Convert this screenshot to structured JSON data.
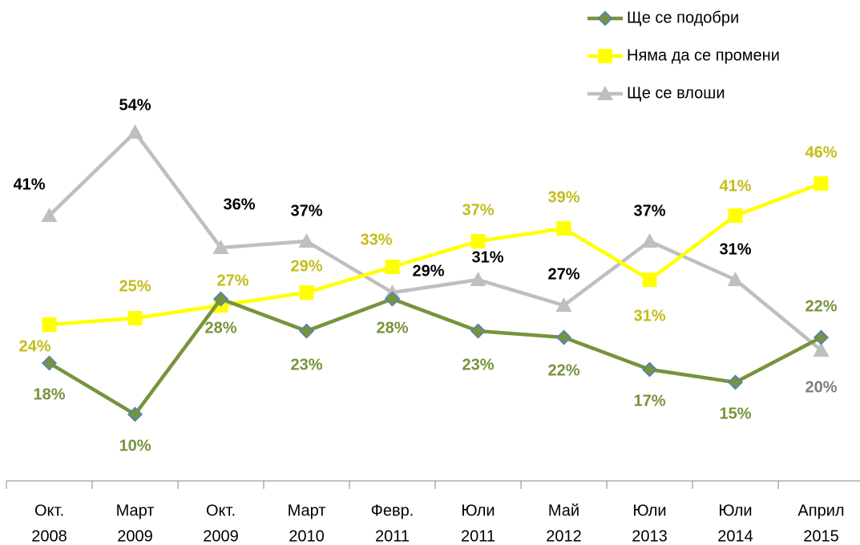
{
  "chart_data": {
    "type": "line",
    "categories": [
      [
        "Окт.",
        "2008"
      ],
      [
        "Март",
        "2009"
      ],
      [
        "Окт.",
        "2009"
      ],
      [
        "Март",
        "2010"
      ],
      [
        "Февр.",
        "2011"
      ],
      [
        "Юли",
        "2011"
      ],
      [
        "Май",
        "2012"
      ],
      [
        "Юли",
        "2013"
      ],
      [
        "Юли",
        "2014"
      ],
      [
        "Април",
        "2015"
      ]
    ],
    "ylim": [
      0,
      70
    ],
    "series": [
      {
        "name": "Ще се подобри",
        "color": "#77933c",
        "label_color": "#77933c",
        "values": [
          18,
          10,
          28,
          23,
          28,
          23,
          22,
          17,
          15,
          22
        ],
        "value_labels": [
          "18%",
          "10%",
          "28%",
          "23%",
          "28%",
          "23%",
          "22%",
          "17%",
          "15%",
          "22%"
        ]
      },
      {
        "name": "Няма да се промени",
        "color": "#ffff00",
        "label_color": "#c4bd1a",
        "values": [
          24,
          25,
          27,
          29,
          33,
          37,
          39,
          31,
          41,
          46
        ],
        "value_labels": [
          "24%",
          "25%",
          "27%",
          "29%",
          "33%",
          "37%",
          "39%",
          "31%",
          "41%",
          "46%"
        ]
      },
      {
        "name": "Ще се влоши",
        "color": "#bfbfbf",
        "label_colors": [
          "#000000",
          "#000000",
          "#000000",
          "#000000",
          "#000000",
          "#000000",
          "#000000",
          "#000000",
          "#000000",
          "#7f7f7f"
        ],
        "values": [
          41,
          54,
          36,
          37,
          29,
          31,
          27,
          37,
          31,
          20
        ],
        "value_labels": [
          "41%",
          "54%",
          "36%",
          "37%",
          "29%",
          "31%",
          "27%",
          "37%",
          "31%",
          "20%"
        ]
      }
    ]
  }
}
